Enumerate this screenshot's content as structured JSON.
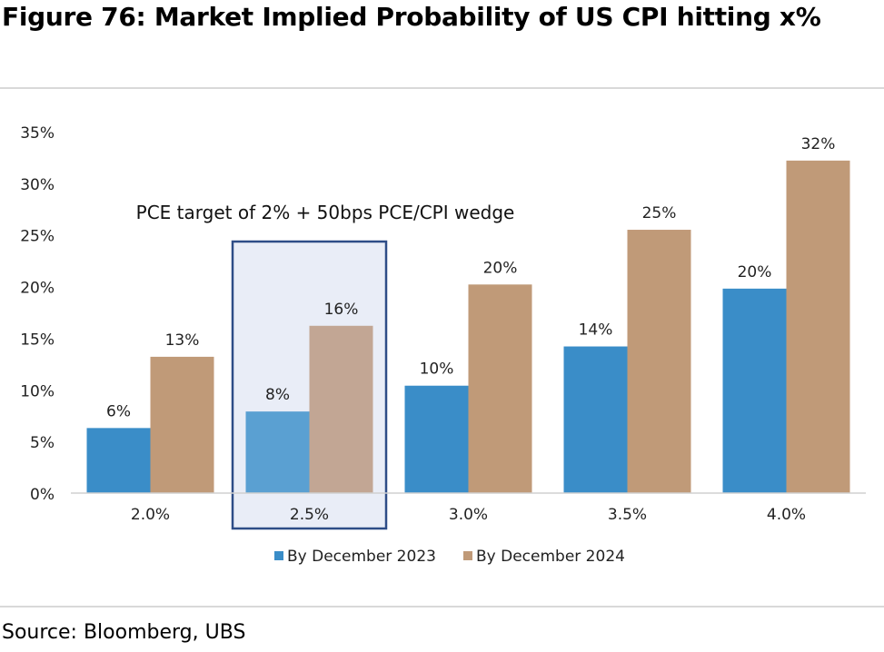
{
  "title": "Figure 76: Market Implied Probability of US CPI hitting x%",
  "source": "Source: Bloomberg, UBS",
  "chart_data": {
    "type": "bar",
    "categories": [
      "2.0%",
      "2.5%",
      "3.0%",
      "3.5%",
      "4.0%"
    ],
    "series": [
      {
        "name": "By December 2023",
        "values": [
          6.3,
          7.9,
          10.4,
          14.2,
          19.8
        ],
        "labels": [
          "6%",
          "8%",
          "10%",
          "14%",
          "20%"
        ],
        "color": "#3a8dc8"
      },
      {
        "name": "By December 2024",
        "values": [
          13.2,
          16.2,
          20.2,
          25.5,
          32.2
        ],
        "labels": [
          "13%",
          "16%",
          "20%",
          "25%",
          "32%"
        ],
        "color": "#c09a78"
      }
    ],
    "highlight": {
      "category": "2.5%",
      "bar_colors": [
        "#5aa0d2",
        "#c2a694"
      ],
      "box_fill": "#e9edf7",
      "box_stroke": "#2e4d87"
    },
    "annotation": "PCE target of 2% + 50bps PCE/CPI wedge",
    "yticks": [
      0,
      5,
      10,
      15,
      20,
      25,
      30,
      35
    ],
    "ytick_labels": [
      "0%",
      "5%",
      "10%",
      "15%",
      "20%",
      "25%",
      "30%",
      "35%"
    ],
    "ylim": [
      0,
      35
    ],
    "grid": false,
    "legend": "bottom-center"
  }
}
